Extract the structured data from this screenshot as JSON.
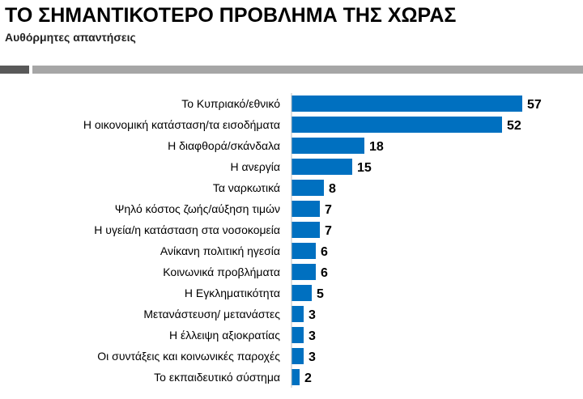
{
  "header": {
    "title": "ΤΟ ΣΗΜΑΝΤΙΚΟΤΕΡΟ ΠΡΟΒΛΗΜΑ ΤΗΣ ΧΩΡΑΣ",
    "subtitle": "Αυθόρμητες απαντήσεις"
  },
  "colors": {
    "bar": "#0070c0",
    "divider_dark": "#595959",
    "divider_light": "#a6a6a6"
  },
  "chart_data": {
    "type": "bar",
    "orientation": "horizontal",
    "title": "ΤΟ ΣΗΜΑΝΤΙΚΟΤΕΡΟ ΠΡΟΒΛΗΜΑ ΤΗΣ ΧΩΡΑΣ",
    "subtitle": "Αυθόρμητες απαντήσεις",
    "categories": [
      "Το Κυπριακό/εθνικό",
      "Η οικονομική κατάσταση/τα εισοδήματα",
      "Η διαφθορά/σκάνδαλα",
      "Η ανεργία",
      "Τα ναρκωτικά",
      "Ψηλό κόστος ζωής/αύξηση τιμών",
      "Η υγεία/η κατάσταση στα νοσοκομεία",
      "Ανίκανη πολιτική ηγεσία",
      "Κοινωνικά προβλήματα",
      "Η Εγκληματικότητα",
      "Μετανάστευση/ μετανάστες",
      "Η έλλειψη αξιοκρατίας",
      "Οι συντάξεις και κοινωνικές παροχές",
      "Το εκπαιδευτικό σύστημα"
    ],
    "values": [
      57,
      52,
      18,
      15,
      8,
      7,
      7,
      6,
      6,
      5,
      3,
      3,
      3,
      2
    ],
    "xlabel": "",
    "ylabel": "",
    "xlim": [
      0,
      60
    ],
    "grid": false,
    "legend": "none",
    "data_labels": true
  }
}
